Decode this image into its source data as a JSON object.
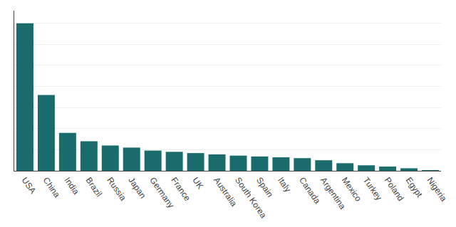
{
  "chart_data": {
    "type": "bar",
    "categories": [
      "USA",
      "China",
      "India",
      "Brazil",
      "Russia",
      "Japan",
      "Germany",
      "France",
      "UK",
      "Australia",
      "South Korea",
      "Spain",
      "Italy",
      "Canada",
      "Argentina",
      "Mexico",
      "Turkey",
      "Poland",
      "Egypt",
      "Nigeria"
    ],
    "values": [
      3500,
      1800,
      900,
      700,
      600,
      550,
      480,
      450,
      420,
      390,
      360,
      340,
      320,
      300,
      250,
      180,
      130,
      100,
      60,
      8
    ],
    "color": "#1a6b6b",
    "ylim": [
      0,
      3800
    ],
    "yticks": [
      0,
      500,
      1000,
      1500,
      2000,
      2500,
      3000,
      3500
    ],
    "grid": true,
    "tick_labels": "x"
  }
}
